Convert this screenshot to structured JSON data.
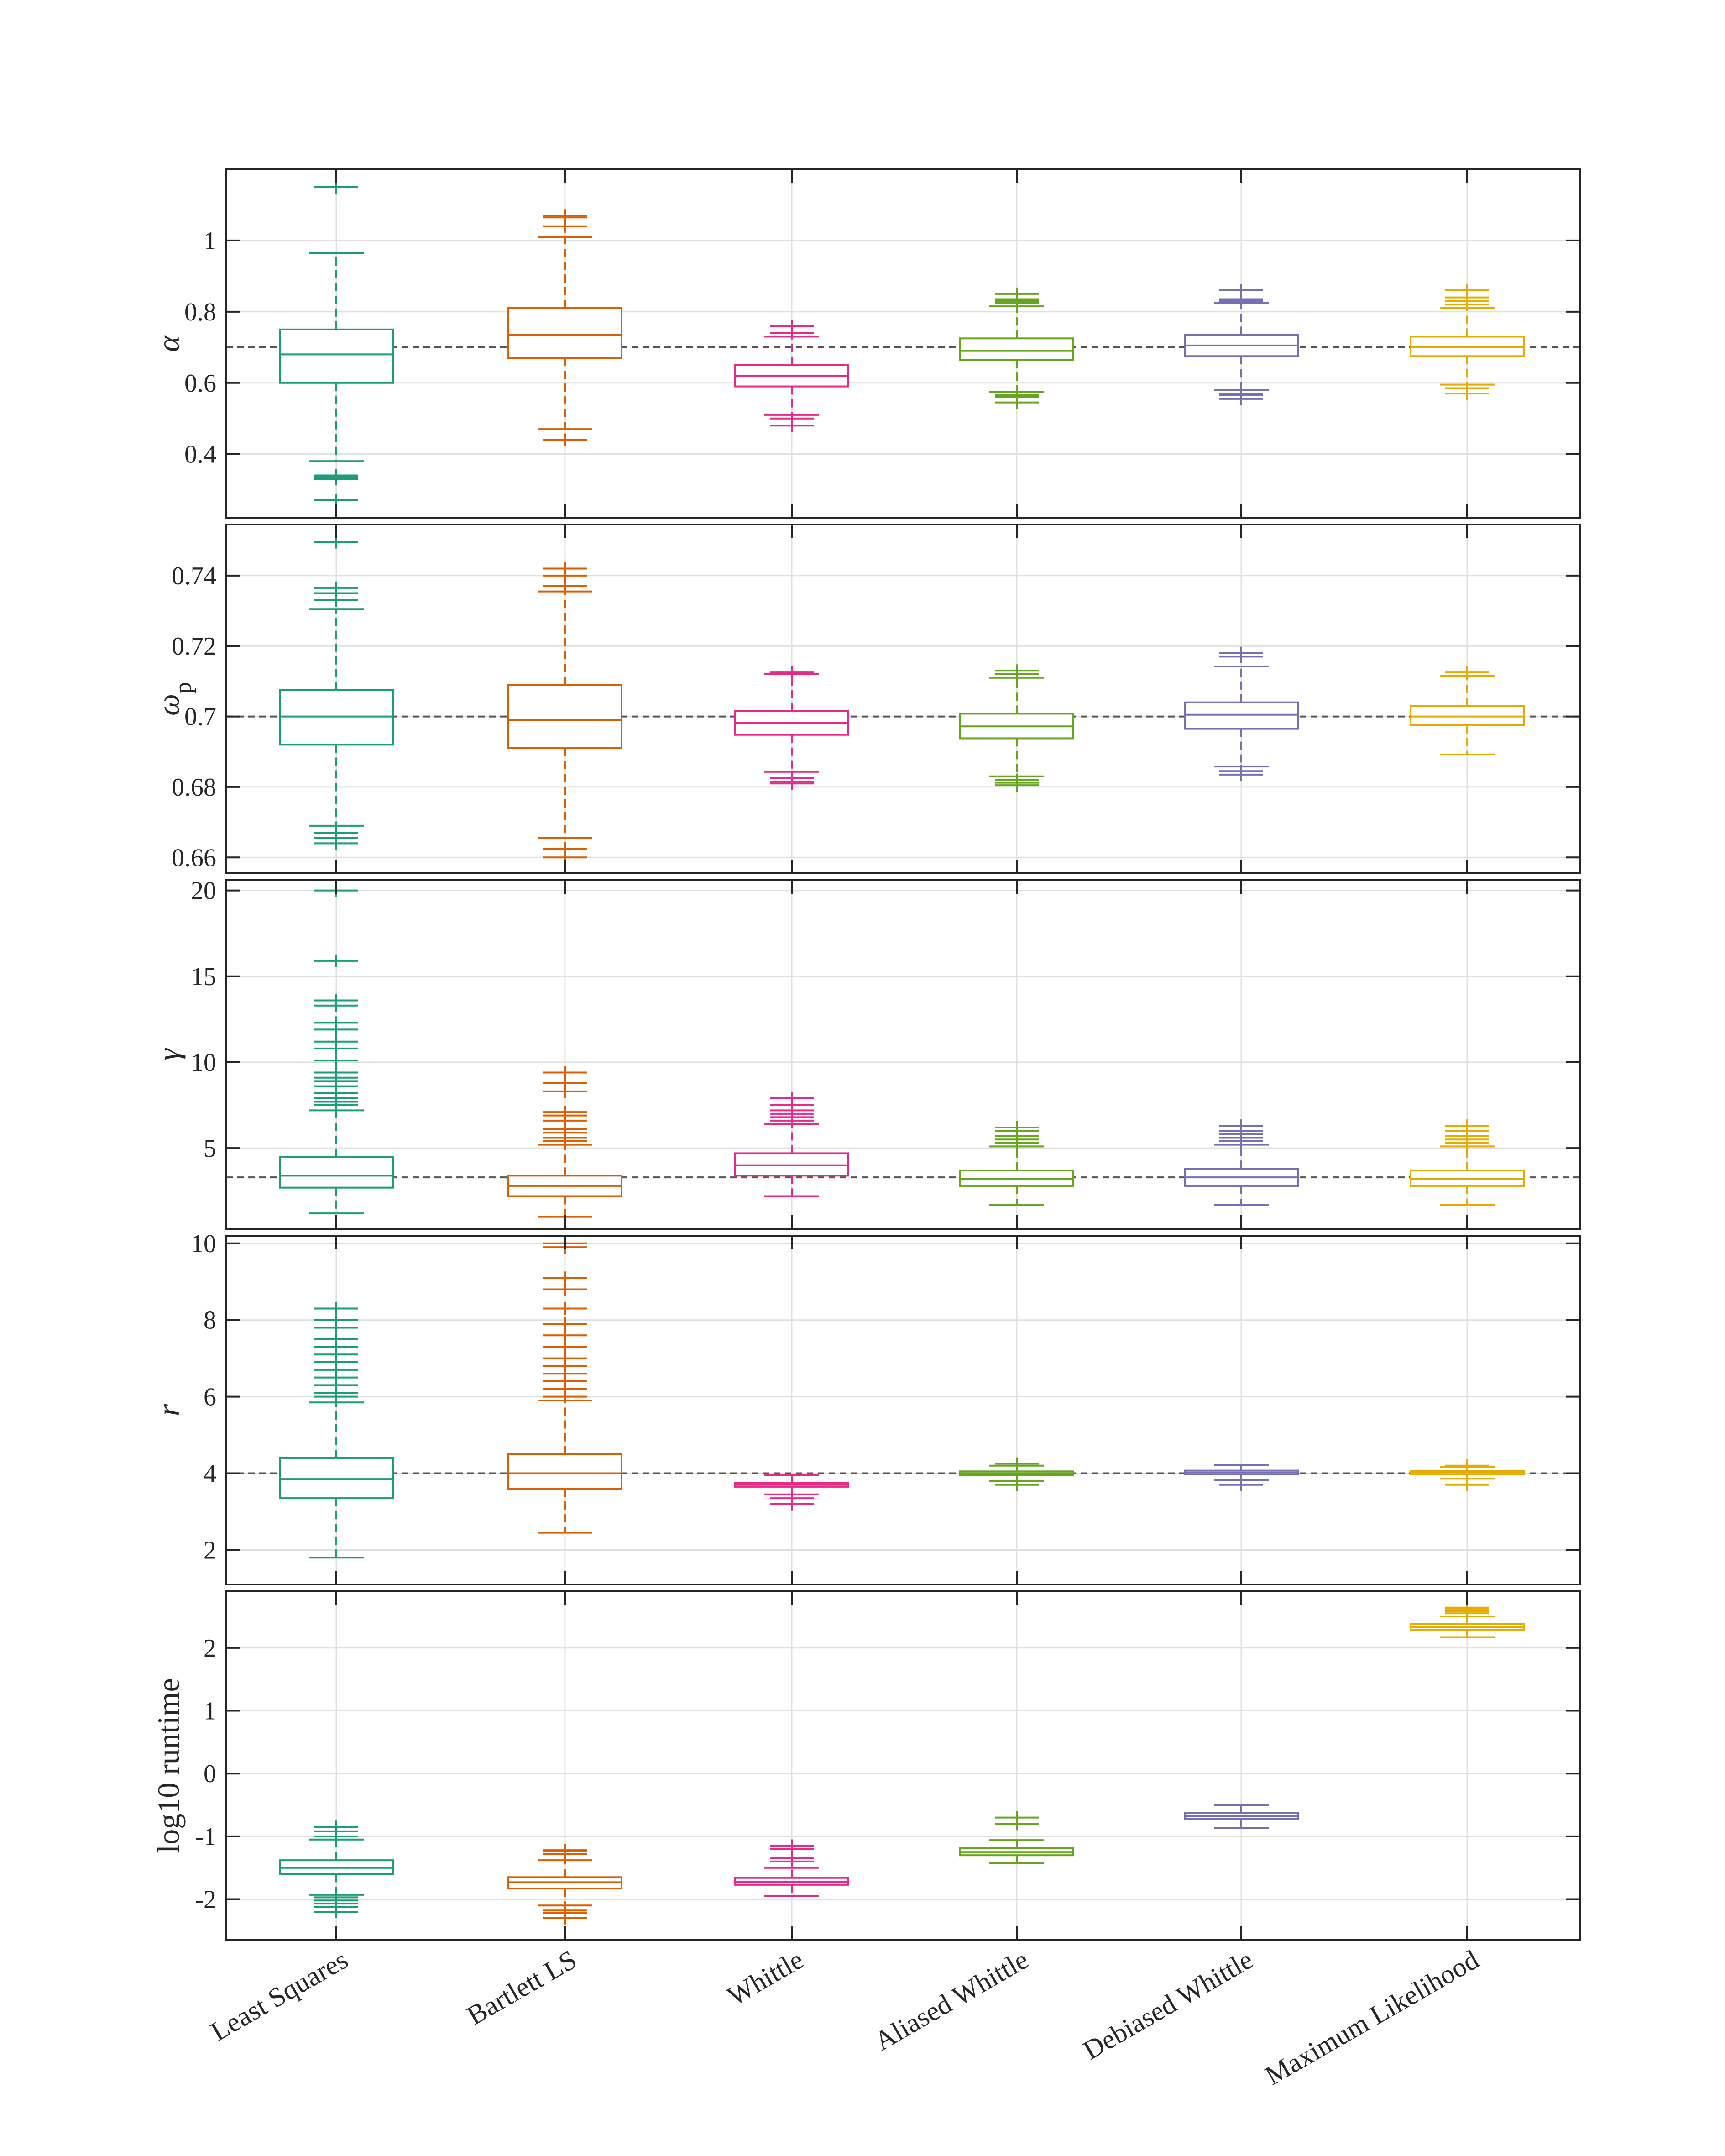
{
  "chart_data": {
    "type": "box",
    "categories": [
      "Least Squares",
      "Bartlett LS",
      "Whittle",
      "Aliased Whittle",
      "Debiased Whittle",
      "Maximum Likelihood"
    ],
    "colors": [
      "#1b9e77",
      "#d95f02",
      "#e7298a",
      "#66a61e",
      "#7570b3",
      "#e6ab02"
    ],
    "panels": [
      {
        "ylabel": "α",
        "ylim": [
          0.22,
          1.2
        ],
        "ticks": [
          0.4,
          0.6,
          0.8,
          1
        ],
        "tick_labels": [
          "0.4",
          "0.6",
          "0.8",
          "1"
        ],
        "true_value": 0.7,
        "boxes": [
          {
            "q1": 0.6,
            "median": 0.68,
            "q3": 0.75,
            "whisker_low": 0.38,
            "whisker_high": 0.965,
            "outliers": [
              0.34,
              0.335,
              0.33,
              0.27,
              1.15
            ]
          },
          {
            "q1": 0.67,
            "median": 0.735,
            "q3": 0.81,
            "whisker_low": 0.47,
            "whisker_high": 1.01,
            "outliers": [
              0.44,
              1.04,
              1.065,
              1.07
            ]
          },
          {
            "q1": 0.59,
            "median": 0.62,
            "q3": 0.65,
            "whisker_low": 0.51,
            "whisker_high": 0.73,
            "outliers": [
              0.5,
              0.48,
              0.74,
              0.76
            ]
          },
          {
            "q1": 0.665,
            "median": 0.69,
            "q3": 0.725,
            "whisker_low": 0.575,
            "whisker_high": 0.815,
            "outliers": [
              0.565,
              0.56,
              0.545,
              0.825,
              0.83,
              0.835,
              0.85
            ]
          },
          {
            "q1": 0.675,
            "median": 0.705,
            "q3": 0.735,
            "whisker_low": 0.58,
            "whisker_high": 0.825,
            "outliers": [
              0.57,
              0.565,
              0.555,
              0.83,
              0.835,
              0.86
            ]
          },
          {
            "q1": 0.675,
            "median": 0.7,
            "q3": 0.73,
            "whisker_low": 0.595,
            "whisker_high": 0.81,
            "outliers": [
              0.585,
              0.57,
              0.82,
              0.83,
              0.84,
              0.86
            ]
          }
        ]
      },
      {
        "ylabel": "ω",
        "ylabel_sub": "p",
        "ylim": [
          0.6555,
          0.7545
        ],
        "ticks": [
          0.66,
          0.68,
          0.7,
          0.72,
          0.74
        ],
        "tick_labels": [
          "0.66",
          "0.68",
          "0.7",
          "0.72",
          "0.74"
        ],
        "true_value": 0.7,
        "boxes": [
          {
            "q1": 0.692,
            "median": 0.7,
            "q3": 0.7075,
            "whisker_low": 0.669,
            "whisker_high": 0.7305,
            "outliers": [
              0.667,
              0.6655,
              0.664,
              0.733,
              0.735,
              0.7365,
              0.7495
            ]
          },
          {
            "q1": 0.691,
            "median": 0.699,
            "q3": 0.709,
            "whisker_low": 0.6655,
            "whisker_high": 0.7355,
            "outliers": [
              0.6625,
              0.66,
              0.737,
              0.74,
              0.742
            ]
          },
          {
            "q1": 0.6948,
            "median": 0.6982,
            "q3": 0.7015,
            "whisker_low": 0.6843,
            "whisker_high": 0.712,
            "outliers": [
              0.6825,
              0.6815,
              0.681,
              0.7125
            ]
          },
          {
            "q1": 0.6938,
            "median": 0.6972,
            "q3": 0.7008,
            "whisker_low": 0.683,
            "whisker_high": 0.711,
            "outliers": [
              0.682,
              0.6812,
              0.6805,
              0.712,
              0.713
            ]
          },
          {
            "q1": 0.6965,
            "median": 0.7005,
            "q3": 0.704,
            "whisker_low": 0.6858,
            "whisker_high": 0.7142,
            "outliers": [
              0.6845,
              0.6835,
              0.717,
              0.718
            ]
          },
          {
            "q1": 0.6975,
            "median": 0.7,
            "q3": 0.703,
            "whisker_low": 0.6892,
            "whisker_high": 0.7115,
            "outliers": [
              0.7125
            ]
          }
        ]
      },
      {
        "ylabel": "γ",
        "ylim": [
          0.3,
          20.6
        ],
        "ticks": [
          5,
          10,
          15,
          20
        ],
        "tick_labels": [
          "5",
          "10",
          "15",
          "20"
        ],
        "true_value": 3.3,
        "boxes": [
          {
            "q1": 2.7,
            "median": 3.4,
            "q3": 4.5,
            "whisker_low": 1.2,
            "whisker_high": 7.2,
            "outliers": [
              7.5,
              7.7,
              7.9,
              8.2,
              8.6,
              8.9,
              9.1,
              9.4,
              10.1,
              10.8,
              11.2,
              11.9,
              12.3,
              13.3,
              13.6,
              15.9,
              20.0
            ]
          },
          {
            "q1": 2.2,
            "median": 2.8,
            "q3": 3.4,
            "whisker_low": 1.0,
            "whisker_high": 5.2,
            "outliers": [
              5.4,
              5.6,
              5.9,
              6.1,
              6.6,
              6.9,
              7.1,
              8.3,
              8.8,
              9.4
            ]
          },
          {
            "q1": 3.4,
            "median": 4.0,
            "q3": 4.7,
            "whisker_low": 2.2,
            "whisker_high": 6.4,
            "outliers": [
              6.6,
              6.8,
              7.0,
              7.2,
              7.5,
              7.9
            ]
          },
          {
            "q1": 2.8,
            "median": 3.2,
            "q3": 3.7,
            "whisker_low": 1.7,
            "whisker_high": 5.1,
            "outliers": [
              5.3,
              5.5,
              5.7,
              6.0,
              6.2
            ]
          },
          {
            "q1": 2.8,
            "median": 3.3,
            "q3": 3.8,
            "whisker_low": 1.7,
            "whisker_high": 5.2,
            "outliers": [
              5.4,
              5.6,
              5.8,
              6.0,
              6.3
            ]
          },
          {
            "q1": 2.8,
            "median": 3.2,
            "q3": 3.7,
            "whisker_low": 1.7,
            "whisker_high": 5.1,
            "outliers": [
              5.3,
              5.5,
              5.7,
              6.0,
              6.3
            ]
          }
        ]
      },
      {
        "ylabel": "r",
        "ylim": [
          1.1,
          10.2
        ],
        "ticks": [
          2,
          4,
          6,
          8,
          10
        ],
        "tick_labels": [
          "2",
          "4",
          "6",
          "8",
          "10"
        ],
        "true_value": 4.0,
        "boxes": [
          {
            "q1": 3.35,
            "median": 3.85,
            "q3": 4.4,
            "whisker_low": 1.8,
            "whisker_high": 5.85,
            "outliers": [
              6.0,
              6.1,
              6.3,
              6.5,
              6.7,
              6.9,
              7.1,
              7.3,
              7.5,
              7.8,
              8.0,
              8.3
            ]
          },
          {
            "q1": 3.6,
            "median": 4.0,
            "q3": 4.5,
            "whisker_low": 2.45,
            "whisker_high": 5.9,
            "outliers": [
              6.0,
              6.2,
              6.4,
              6.6,
              6.8,
              7.0,
              7.3,
              7.6,
              7.9,
              8.3,
              8.8,
              9.1,
              9.9,
              10.0
            ]
          },
          {
            "q1": 3.65,
            "median": 3.7,
            "q3": 3.75,
            "whisker_low": 3.45,
            "whisker_high": 3.95,
            "outliers": [
              3.35,
              3.2
            ]
          },
          {
            "q1": 3.95,
            "median": 4.0,
            "q3": 4.05,
            "whisker_low": 3.8,
            "whisker_high": 4.2,
            "outliers": [
              3.7,
              4.25
            ]
          },
          {
            "q1": 3.97,
            "median": 4.02,
            "q3": 4.07,
            "whisker_low": 3.82,
            "whisker_high": 4.22,
            "outliers": [
              3.7
            ]
          },
          {
            "q1": 3.97,
            "median": 4.02,
            "q3": 4.06,
            "whisker_low": 3.86,
            "whisker_high": 4.17,
            "outliers": [
              3.7,
              4.2
            ]
          }
        ]
      },
      {
        "ylabel": "log10 runtime",
        "ylim": [
          -2.65,
          2.9
        ],
        "ticks": [
          -2,
          -1,
          0,
          1,
          2
        ],
        "tick_labels": [
          "-2",
          "-1",
          "0",
          "1",
          "2"
        ],
        "true_value": null,
        "boxes": [
          {
            "q1": -1.6,
            "median": -1.5,
            "q3": -1.38,
            "whisker_low": -1.93,
            "whisker_high": -1.05,
            "outliers": [
              -1.97,
              -2.02,
              -2.07,
              -2.12,
              -2.2,
              -1.0,
              -0.92,
              -0.85
            ]
          },
          {
            "q1": -1.83,
            "median": -1.73,
            "q3": -1.65,
            "whisker_low": -2.1,
            "whisker_high": -1.38,
            "outliers": [
              -2.18,
              -2.22,
              -2.3,
              -1.28,
              -1.24,
              -1.22
            ]
          },
          {
            "q1": -1.77,
            "median": -1.72,
            "q3": -1.66,
            "whisker_low": -1.95,
            "whisker_high": -1.5,
            "outliers": [
              -1.4,
              -1.35,
              -1.2,
              -1.15
            ]
          },
          {
            "q1": -1.3,
            "median": -1.25,
            "q3": -1.19,
            "whisker_low": -1.43,
            "whisker_high": -1.06,
            "outliers": [
              -0.8,
              -0.7
            ]
          },
          {
            "q1": -0.72,
            "median": -0.68,
            "q3": -0.63,
            "whisker_low": -0.87,
            "whisker_high": -0.5,
            "outliers": []
          },
          {
            "q1": 2.29,
            "median": 2.33,
            "q3": 2.38,
            "whisker_low": 2.17,
            "whisker_high": 2.5,
            "outliers": [
              2.55,
              2.58,
              2.62,
              2.64
            ]
          }
        ]
      }
    ]
  }
}
